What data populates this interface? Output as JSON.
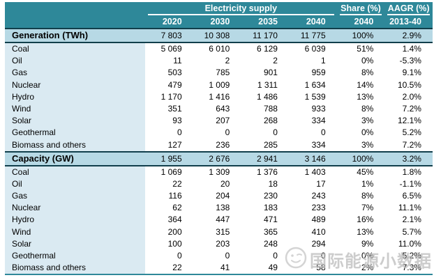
{
  "colors": {
    "header_teal": "#2E8899",
    "section_bg": "#B7D9E5",
    "label_col_bg": "#DAEAF2",
    "border_dark": "#113F4B",
    "watermark_gray": "#BCBCBC"
  },
  "watermark": {
    "text": "国际能源小数据",
    "logo": "smiley-circle-logo"
  },
  "chart_data": {
    "type": "table",
    "title": "Electricity supply",
    "col_groups": {
      "electricity_supply": "Electricity supply",
      "share": "Share (%)",
      "aagr": "AAGR (%)"
    },
    "columns": [
      "2020",
      "2030",
      "2035",
      "2040",
      "2040",
      "2013-40"
    ],
    "sections": [
      {
        "header": {
          "label": "Generation (TWh)",
          "values": [
            "7 803",
            "10 308",
            "11 170",
            "11 775",
            "100%",
            "2.9%"
          ]
        },
        "rows": [
          {
            "label": "Coal",
            "values": [
              "5 069",
              "6 010",
              "6 129",
              "6 039",
              "51%",
              "1.4%"
            ]
          },
          {
            "label": "Oil",
            "values": [
              "11",
              "2",
              "2",
              "1",
              "0%",
              "-5.3%"
            ]
          },
          {
            "label": "Gas",
            "values": [
              "503",
              "785",
              "901",
              "959",
              "8%",
              "9.1%"
            ]
          },
          {
            "label": "Nuclear",
            "values": [
              "479",
              "1 009",
              "1 311",
              "1 634",
              "14%",
              "10.5%"
            ]
          },
          {
            "label": "Hydro",
            "values": [
              "1 170",
              "1 416",
              "1 486",
              "1 539",
              "13%",
              "2.0%"
            ]
          },
          {
            "label": "Wind",
            "values": [
              "351",
              "643",
              "788",
              "933",
              "8%",
              "7.2%"
            ]
          },
          {
            "label": "Solar",
            "values": [
              "93",
              "207",
              "268",
              "334",
              "3%",
              "12.1%"
            ]
          },
          {
            "label": "Geothermal",
            "values": [
              "0",
              "0",
              "0",
              "0",
              "0%",
              "5.2%"
            ]
          },
          {
            "label": "Biomass and others",
            "values": [
              "127",
              "236",
              "285",
              "334",
              "3%",
              "7.2%"
            ]
          }
        ]
      },
      {
        "header": {
          "label": "Capacity (GW)",
          "values": [
            "1 955",
            "2 676",
            "2 941",
            "3 146",
            "100%",
            "3.2%"
          ]
        },
        "rows": [
          {
            "label": "Coal",
            "values": [
              "1 069",
              "1 309",
              "1 376",
              "1 403",
              "45%",
              "1.8%"
            ]
          },
          {
            "label": "Oil",
            "values": [
              "22",
              "20",
              "18",
              "17",
              "1%",
              "-1.1%"
            ]
          },
          {
            "label": "Gas",
            "values": [
              "116",
              "204",
              "230",
              "243",
              "8%",
              "6.5%"
            ]
          },
          {
            "label": "Nuclear",
            "values": [
              "62",
              "138",
              "183",
              "233",
              "7%",
              "11.1%"
            ]
          },
          {
            "label": "Hydro",
            "values": [
              "364",
              "447",
              "471",
              "489",
              "16%",
              "2.1%"
            ]
          },
          {
            "label": "Wind",
            "values": [
              "200",
              "315",
              "365",
              "410",
              "13%",
              "5.7%"
            ]
          },
          {
            "label": "Solar",
            "values": [
              "100",
              "203",
              "248",
              "294",
              "9%",
              "11.0%"
            ]
          },
          {
            "label": "Geothermal",
            "values": [
              "0",
              "0",
              "0",
              "0",
              "0%",
              "5.2%"
            ]
          },
          {
            "label": "Biomass and others",
            "values": [
              "22",
              "41",
              "49",
              "58",
              "2%",
              "7.3%"
            ]
          }
        ]
      }
    ]
  }
}
